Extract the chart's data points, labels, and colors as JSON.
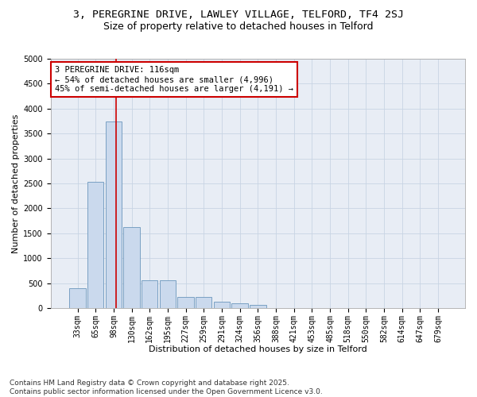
{
  "title_line1": "3, PEREGRINE DRIVE, LAWLEY VILLAGE, TELFORD, TF4 2SJ",
  "title_line2": "Size of property relative to detached houses in Telford",
  "xlabel": "Distribution of detached houses by size in Telford",
  "ylabel": "Number of detached properties",
  "categories": [
    "33sqm",
    "65sqm",
    "98sqm",
    "130sqm",
    "162sqm",
    "195sqm",
    "227sqm",
    "259sqm",
    "291sqm",
    "324sqm",
    "356sqm",
    "388sqm",
    "421sqm",
    "453sqm",
    "485sqm",
    "518sqm",
    "550sqm",
    "582sqm",
    "614sqm",
    "647sqm",
    "679sqm"
  ],
  "values": [
    390,
    2530,
    3740,
    1620,
    560,
    560,
    230,
    220,
    120,
    100,
    70,
    0,
    0,
    0,
    0,
    0,
    0,
    0,
    0,
    0,
    0
  ],
  "bar_color": "#cad9ed",
  "bar_edge_color": "#6b96bc",
  "vline_x_index": 2.15,
  "vline_color": "#cc0000",
  "annotation_text": "3 PEREGRINE DRIVE: 116sqm\n← 54% of detached houses are smaller (4,996)\n45% of semi-detached houses are larger (4,191) →",
  "annotation_box_color": "#ffffff",
  "annotation_box_edge": "#cc0000",
  "ylim": [
    0,
    5000
  ],
  "yticks": [
    0,
    500,
    1000,
    1500,
    2000,
    2500,
    3000,
    3500,
    4000,
    4500,
    5000
  ],
  "grid_color": "#c8d4e4",
  "bg_color": "#e8edf5",
  "footer_text": "Contains HM Land Registry data © Crown copyright and database right 2025.\nContains public sector information licensed under the Open Government Licence v3.0.",
  "title_fontsize": 9.5,
  "subtitle_fontsize": 9,
  "axis_label_fontsize": 8,
  "tick_fontsize": 7,
  "annotation_fontsize": 7.5,
  "footer_fontsize": 6.5
}
